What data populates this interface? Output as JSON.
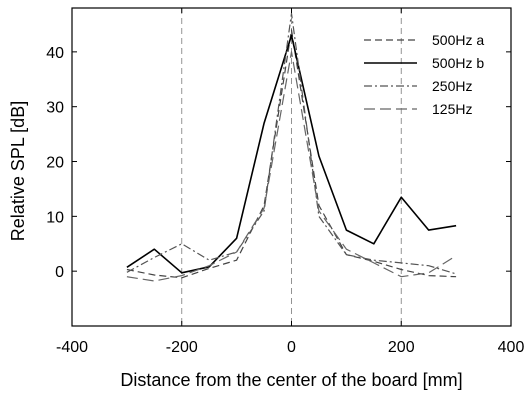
{
  "chart_data": {
    "type": "line",
    "title": "",
    "xlabel": "Distance from the center of the board [mm]",
    "ylabel": "Relative SPL [dB]",
    "xlim": [
      -400,
      400
    ],
    "ylim": [
      -10,
      48
    ],
    "xticks": [
      -400,
      -200,
      0,
      200,
      400
    ],
    "yticks": [
      0,
      10,
      20,
      30,
      40
    ],
    "xtick_labels": [
      "-400",
      "-200",
      "0",
      "200",
      "400"
    ],
    "ytick_labels": [
      "0",
      "10",
      "20",
      "30",
      "40"
    ],
    "vlines": [
      -200,
      0,
      200
    ],
    "legend_position": "top-right",
    "x": [
      -300,
      -250,
      -200,
      -150,
      -100,
      -50,
      0,
      50,
      100,
      150,
      200,
      250,
      300
    ],
    "series": [
      {
        "name": "500Hz a",
        "style": "dashed",
        "color": "#444444",
        "values": [
          0.3,
          -0.7,
          -1.2,
          0.5,
          2.0,
          12.0,
          44.0,
          12.0,
          3.0,
          1.8,
          0.3,
          -0.8,
          -1.0
        ]
      },
      {
        "name": "500Hz b",
        "style": "solid",
        "color": "#000000",
        "values": [
          0.7,
          4.0,
          -0.3,
          0.8,
          6.0,
          27.0,
          43.0,
          21.0,
          7.5,
          5.0,
          13.5,
          7.5,
          8.3
        ]
      },
      {
        "name": "250Hz",
        "style": "dashdot",
        "color": "#555555",
        "values": [
          -0.2,
          2.5,
          5.0,
          2.0,
          3.5,
          11.0,
          47.0,
          10.0,
          3.0,
          2.0,
          1.5,
          1.0,
          -0.5
        ]
      },
      {
        "name": "125Hz",
        "style": "longdash",
        "color": "#666666",
        "values": [
          -1.0,
          -1.8,
          -0.8,
          1.0,
          3.5,
          11.5,
          40.0,
          11.0,
          4.0,
          1.5,
          -1.0,
          -0.3,
          2.8
        ]
      }
    ]
  }
}
